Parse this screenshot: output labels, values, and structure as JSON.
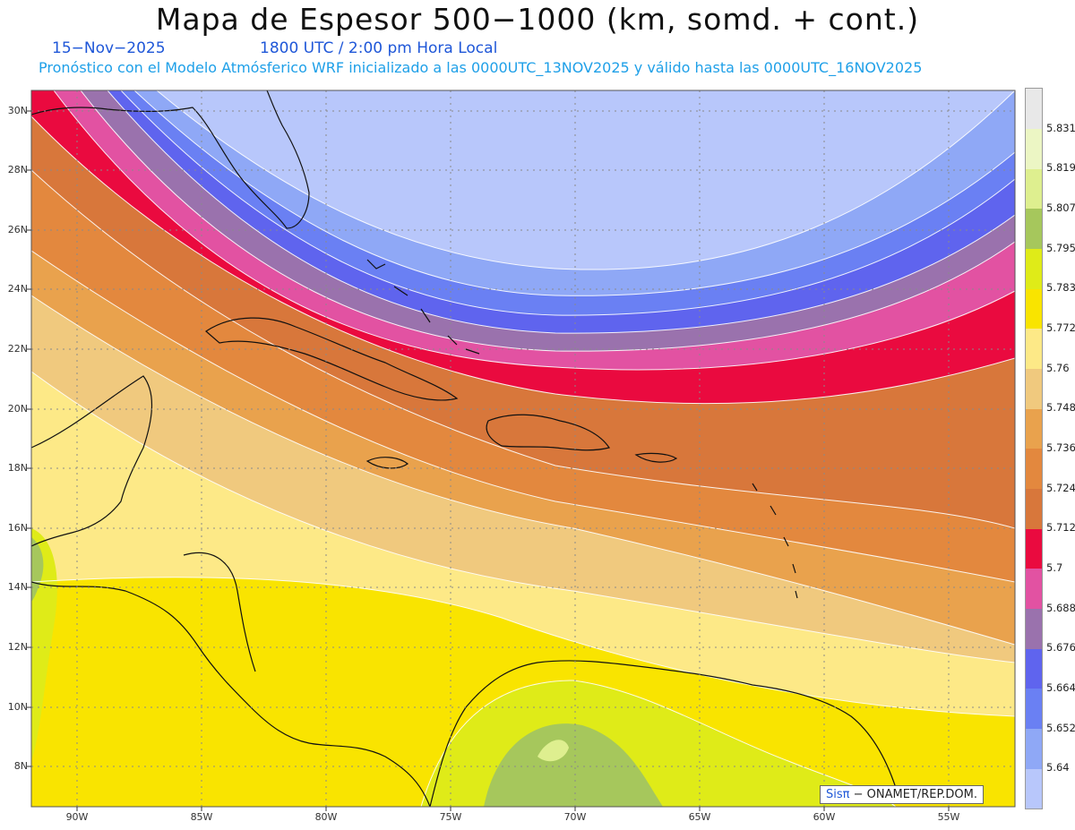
{
  "title": "Mapa de Espesor 500−1000 (km, somd. + cont.)",
  "date": "15−Nov−2025",
  "time": "1800 UTC / 2:00 pm Hora Local",
  "description": "Pronóstico con el Modelo Atmósferico WRF inicializado a las 0000UTC_13NOV2025 y válido hasta las  0000UTC_16NOV2025",
  "credit": {
    "brand": "Sisπ",
    "text": " − ONAMET/REP.DOM."
  },
  "axes": {
    "lat_labels": [
      "30N",
      "28N",
      "26N",
      "24N",
      "22N",
      "20N",
      "18N",
      "16N",
      "14N",
      "12N",
      "10N",
      "8N"
    ],
    "lon_labels": [
      "90W",
      "85W",
      "80W",
      "75W",
      "70W",
      "65W",
      "60W",
      "55W"
    ]
  },
  "colorbar": {
    "levels": [
      "5.64",
      "5.652",
      "5.664",
      "5.676",
      "5.688",
      "5.7",
      "5.712",
      "5.724",
      "5.736",
      "5.748",
      "5.76",
      "5.772",
      "5.783",
      "5.795",
      "5.807",
      "5.819",
      "5.831"
    ],
    "colors": [
      "#b8c7fb",
      "#8fa8f6",
      "#6a80f3",
      "#5f64ee",
      "#9a72ad",
      "#e252a2",
      "#ea0a3f",
      "#d8773b",
      "#e3883e",
      "#e9a24d",
      "#f0c97e",
      "#fde987",
      "#f9e400",
      "#dfeb18",
      "#a6c75c",
      "#deef8f",
      "#ecf6c4",
      "#e8e8e8"
    ]
  },
  "map": {
    "region": "Caribe y Golfo de México",
    "extent": {
      "lon_min": -92,
      "lon_max": -52.5,
      "lat_min": 6.8,
      "lat_max": 30.6
    },
    "contour_interval": "0.012 km"
  }
}
